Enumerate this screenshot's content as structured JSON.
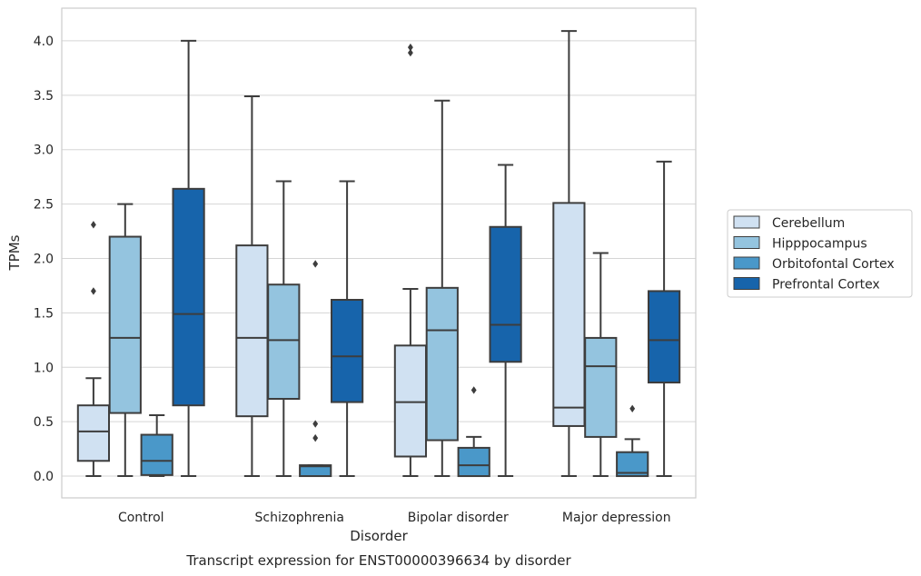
{
  "chart_data": {
    "type": "boxplot",
    "title": "Transcript expression for ENST00000396634 by disorder",
    "xlabel": "Disorder",
    "ylabel": "TPMs",
    "ylim": [
      -0.2,
      4.3
    ],
    "yticks": [
      "0.0",
      "0.5",
      "1.0",
      "1.5",
      "2.0",
      "2.5",
      "3.0",
      "3.5",
      "4.0"
    ],
    "grid": "horizontal",
    "legend_position": "right",
    "categories": [
      "Control",
      "Schizophrenia",
      "Bipolar disorder",
      "Major depression"
    ],
    "series": [
      {
        "name": "Cerebellum",
        "color": "#d0e1f2",
        "boxes": [
          {
            "whislo": 0.0,
            "q1": 0.14,
            "median": 0.41,
            "q3": 0.65,
            "whishi": 0.9,
            "fliers": [
              1.7,
              2.31
            ]
          },
          {
            "whislo": 0.0,
            "q1": 0.55,
            "median": 1.27,
            "q3": 2.12,
            "whishi": 3.49,
            "fliers": []
          },
          {
            "whislo": 0.0,
            "q1": 0.18,
            "median": 0.68,
            "q3": 1.2,
            "whishi": 1.72,
            "fliers": [
              3.89,
              3.94
            ]
          },
          {
            "whislo": 0.0,
            "q1": 0.46,
            "median": 0.63,
            "q3": 2.51,
            "whishi": 4.09,
            "fliers": []
          }
        ]
      },
      {
        "name": "Hipppocampus",
        "color": "#94c4df",
        "boxes": [
          {
            "whislo": 0.0,
            "q1": 0.58,
            "median": 1.27,
            "q3": 2.2,
            "whishi": 2.5,
            "fliers": []
          },
          {
            "whislo": 0.0,
            "q1": 0.71,
            "median": 1.25,
            "q3": 1.76,
            "whishi": 2.71,
            "fliers": []
          },
          {
            "whislo": 0.0,
            "q1": 0.33,
            "median": 1.34,
            "q3": 1.73,
            "whishi": 3.45,
            "fliers": []
          },
          {
            "whislo": 0.0,
            "q1": 0.36,
            "median": 1.01,
            "q3": 1.27,
            "whishi": 2.05,
            "fliers": []
          }
        ]
      },
      {
        "name": "Orbitofontal Cortex",
        "color": "#4a98c9",
        "boxes": [
          {
            "whislo": 0.0,
            "q1": 0.01,
            "median": 0.14,
            "q3": 0.38,
            "whishi": 0.56,
            "fliers": []
          },
          {
            "whislo": 0.0,
            "q1": 0.0,
            "median": 0.09,
            "q3": 0.1,
            "whishi": 0.1,
            "fliers": [
              0.35,
              0.48,
              1.95
            ]
          },
          {
            "whislo": 0.0,
            "q1": 0.0,
            "median": 0.1,
            "q3": 0.26,
            "whishi": 0.36,
            "fliers": [
              0.79
            ]
          },
          {
            "whislo": 0.0,
            "q1": 0.0,
            "median": 0.03,
            "q3": 0.22,
            "whishi": 0.34,
            "fliers": [
              0.62
            ]
          }
        ]
      },
      {
        "name": "Prefrontal Cortex",
        "color": "#1764ab",
        "boxes": [
          {
            "whislo": 0.0,
            "q1": 0.65,
            "median": 1.49,
            "q3": 2.64,
            "whishi": 4.0,
            "fliers": []
          },
          {
            "whislo": 0.0,
            "q1": 0.68,
            "median": 1.1,
            "q3": 1.62,
            "whishi": 2.71,
            "fliers": []
          },
          {
            "whislo": 0.0,
            "q1": 1.05,
            "median": 1.39,
            "q3": 2.29,
            "whishi": 2.86,
            "fliers": []
          },
          {
            "whislo": 0.0,
            "q1": 0.86,
            "median": 1.25,
            "q3": 1.7,
            "whishi": 2.89,
            "fliers": []
          }
        ]
      }
    ]
  }
}
